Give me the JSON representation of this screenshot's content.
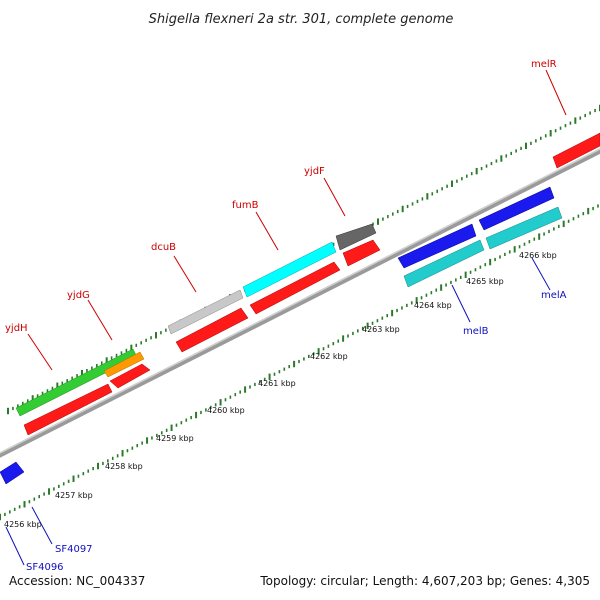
{
  "title": "Shigella flexneri 2a str. 301, complete genome",
  "footer": {
    "accession": "Accession: NC_004337",
    "summary": "Topology: circular; Length: 4,607,203 bp; Genes: 4,305"
  },
  "colors": {
    "backbone": "#8a8a8a",
    "dots_top": "#2a7a2a",
    "dots_bottom": "#2a7a2a",
    "label_top": "#cc0000",
    "label_bottom": "#1010c0",
    "red": "#ff1a1a",
    "green": "#33cc33",
    "orange": "#ff9900",
    "silver": "#c8c8c8",
    "cyan": "#00ffff",
    "darkgray": "#666666",
    "blue": "#1a1aee",
    "teal": "#22cccc"
  },
  "ticks": [
    {
      "label": "4256 kbp"
    },
    {
      "label": "4257 kbp"
    },
    {
      "label": "4258 kbp"
    },
    {
      "label": "4259 kbp"
    },
    {
      "label": "4260 kbp"
    },
    {
      "label": "4261 kbp"
    },
    {
      "label": "4262 kbp"
    },
    {
      "label": "4263 kbp"
    },
    {
      "label": "4264 kbp"
    },
    {
      "label": "4265 kbp"
    },
    {
      "label": "4266 kbp"
    }
  ],
  "genes_top": [
    {
      "name": "yjdH"
    },
    {
      "name": "yjdG"
    },
    {
      "name": "dcuB"
    },
    {
      "name": "fumB"
    },
    {
      "name": "yjdF"
    },
    {
      "name": "melR"
    }
  ],
  "genes_bottom": [
    {
      "name": "SF4096"
    },
    {
      "name": "SF4097"
    },
    {
      "name": "melB"
    },
    {
      "name": "melA"
    }
  ]
}
